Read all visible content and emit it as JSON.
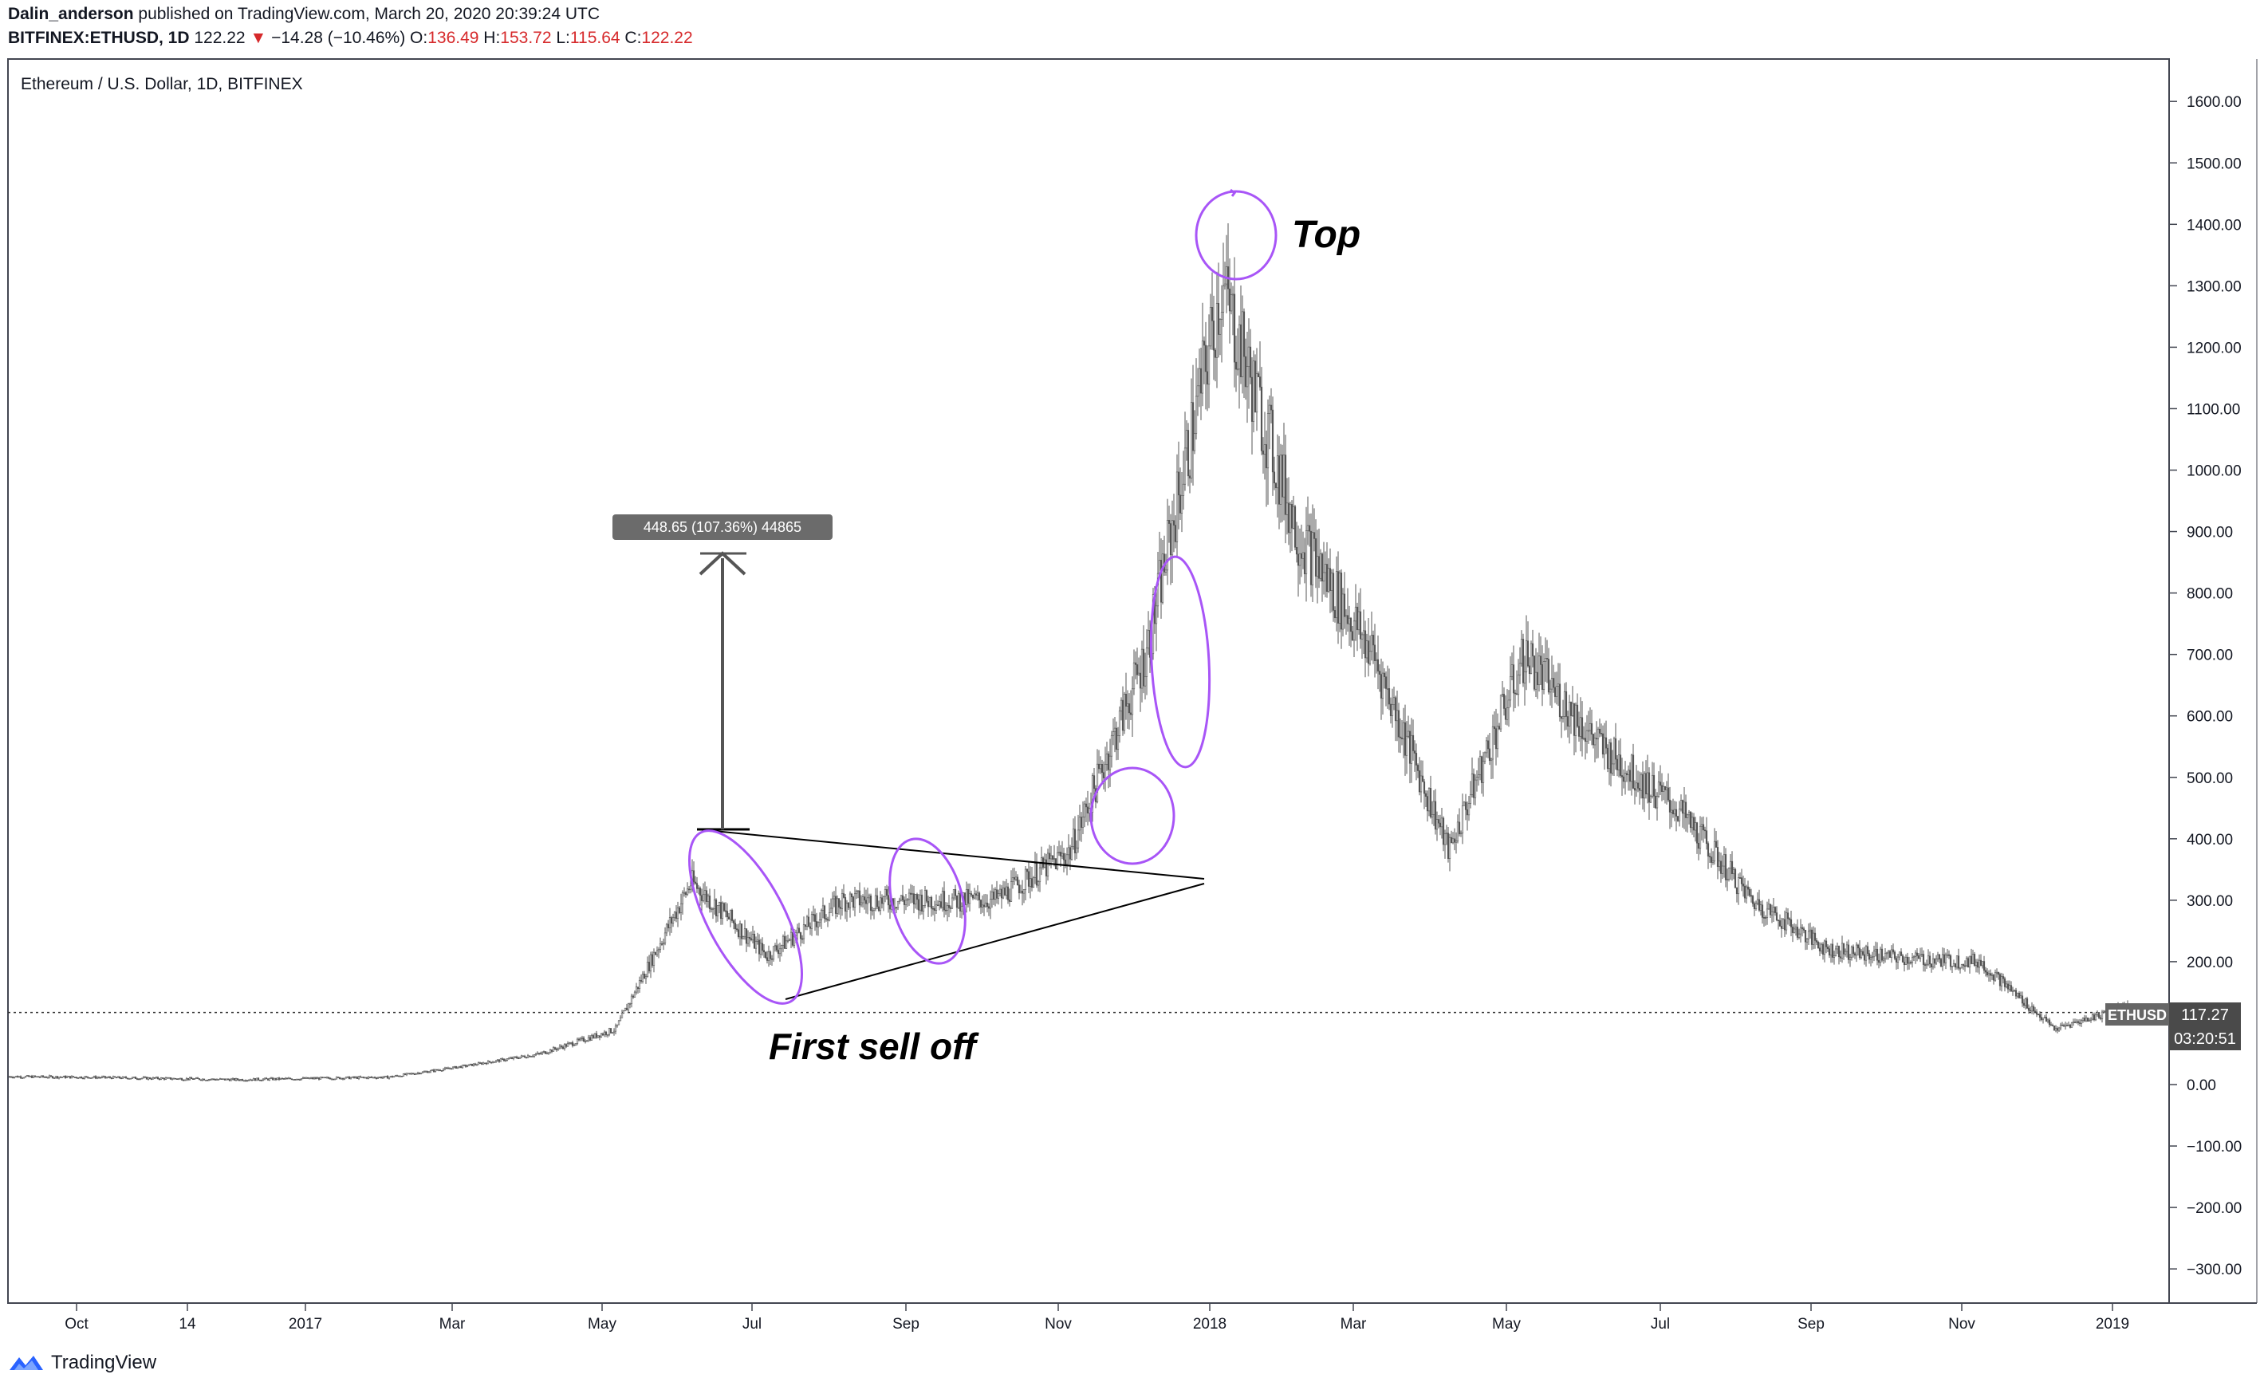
{
  "header": {
    "publisher": "Dalin_anderson",
    "published_text": "published on TradingView.com, March 20, 2020 20:39:24 UTC",
    "symbol": "BITFINEX:ETHUSD, 1D",
    "last": "122.22",
    "change_arrow": "▼",
    "change": "−14.28 (−10.46%)",
    "o_label": "O:",
    "o_value": "136.49",
    "h_label": "H:",
    "h_value": "153.72",
    "l_label": "L:",
    "l_value": "115.64",
    "c_label": "C:",
    "c_value": "122.22"
  },
  "chart_data": {
    "type": "candlestick",
    "title": "Ethereum / U.S. Dollar, 1D, BITFINEX",
    "x": [
      "2016-09",
      "2016-10",
      "2016-11",
      "2016-12",
      "2017-01",
      "2017-02",
      "2017-03",
      "2017-04",
      "2017-05",
      "2017-06",
      "2017-07",
      "2017-08",
      "2017-09",
      "2017-10",
      "2017-11",
      "2017-12",
      "2018-01",
      "2018-02",
      "2018-03",
      "2018-04",
      "2018-05",
      "2018-06",
      "2018-07",
      "2018-08",
      "2018-09",
      "2018-10",
      "2018-11",
      "2018-12",
      "2019-01"
    ],
    "close": [
      13,
      12,
      10,
      8,
      10,
      12,
      30,
      50,
      90,
      330,
      210,
      300,
      300,
      300,
      380,
      700,
      1300,
      900,
      700,
      380,
      700,
      550,
      450,
      300,
      220,
      205,
      200,
      90,
      130
    ],
    "ylim": [
      -350,
      1650
    ],
    "y_ticks": [
      "1600.00",
      "1500.00",
      "1400.00",
      "1300.00",
      "1200.00",
      "1100.00",
      "1000.00",
      "900.00",
      "800.00",
      "700.00",
      "600.00",
      "500.00",
      "400.00",
      "300.00",
      "200.00",
      "100.00",
      "0.00",
      "−100.00",
      "−200.00",
      "−300.00"
    ],
    "x_ticks": [
      "Oct",
      "14",
      "2017",
      "Mar",
      "May",
      "Jul",
      "Sep",
      "Nov",
      "2018",
      "Mar",
      "May",
      "Jul",
      "Sep",
      "Nov",
      "2019"
    ],
    "price_label": {
      "symbol": "ETHUSD",
      "value": "117.27",
      "countdown": "03:20:51"
    },
    "measure_label": "448.65 (107.36%) 44865",
    "annotations": {
      "top": "Top",
      "sell_off": "First sell off"
    },
    "colors": {
      "candles": "#555555",
      "circles": "#a855f7",
      "lines": "#000000",
      "label_bg": "#6b6b6b"
    }
  },
  "footer": {
    "brand": "TradingView",
    "logo_icon": "tradingview-logo-icon"
  }
}
